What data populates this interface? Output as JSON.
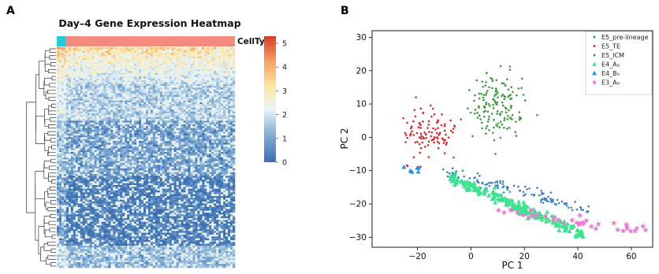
{
  "panels": {
    "a": {
      "letter": "A"
    },
    "b": {
      "letter": "B"
    }
  },
  "chart_data": [
    {
      "type": "heatmap",
      "title": "Day–4 Gene Expression Heatmap",
      "annotation_label": "CellType",
      "annotation_colors": [
        "#22ccd6",
        "#f28b7e"
      ],
      "colorbar": {
        "ticks": [
          "0",
          "1",
          "2",
          "3",
          "4",
          "5"
        ],
        "range": [
          0,
          5.3
        ],
        "colors": [
          "#3b6fb2",
          "#e9f4f7",
          "#fde7a1",
          "#f6a15f",
          "#d93a28"
        ]
      },
      "dendrogram": "rows, left side",
      "grid": false
    },
    {
      "type": "scatter",
      "xlabel": "PC 1",
      "ylabel": "PC 2",
      "xlim": [
        -37,
        68
      ],
      "ylim": [
        -33,
        32
      ],
      "xticks": [
        "−20",
        "0",
        "20",
        "40",
        "60"
      ],
      "yticks": [
        "−30",
        "−20",
        "−10",
        "0",
        "10",
        "20",
        "30"
      ],
      "legend_position": "top-right",
      "series": [
        {
          "name": "E5_pre-lineage",
          "color": "#3a82c4",
          "marker": "dot",
          "x_range": [
            -10,
            45
          ],
          "y_range": [
            -22,
            -10
          ]
        },
        {
          "name": "E5_TE",
          "color": "#e0272b",
          "marker": "dot",
          "x_range": [
            -35,
            3
          ],
          "y_range": [
            -14,
            16
          ]
        },
        {
          "name": "E5_ICM",
          "color": "#3a9b3a",
          "marker": "dot",
          "x_range": [
            -10,
            30
          ],
          "y_range": [
            -11,
            30
          ]
        },
        {
          "name": "E4_A₀",
          "color": "#3ce38e",
          "marker": "triangle",
          "x_range": [
            -8,
            42
          ],
          "y_range": [
            -29,
            -12
          ]
        },
        {
          "name": "E4_B₀",
          "color": "#1f8fe0",
          "marker": "triangle",
          "x_range": [
            -30,
            -12
          ],
          "y_range": [
            -13,
            -6
          ]
        },
        {
          "name": "E3_A₀",
          "color": "#ee7ad2",
          "marker": "star",
          "x_range": [
            10,
            66
          ],
          "y_range": [
            -31,
            -19
          ]
        }
      ]
    }
  ]
}
